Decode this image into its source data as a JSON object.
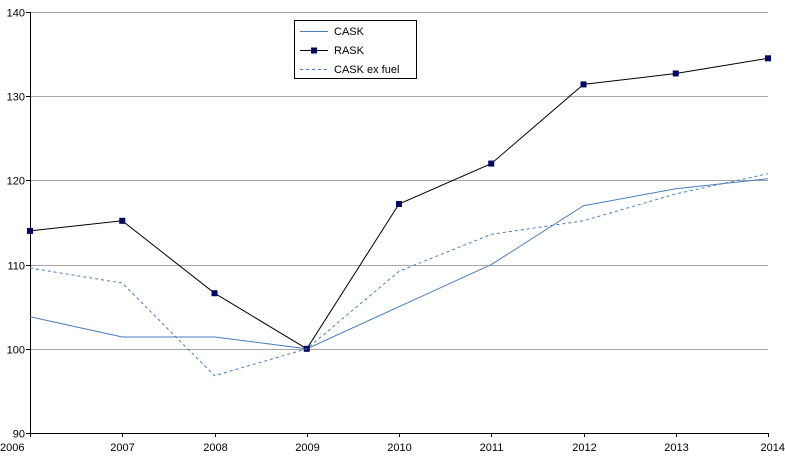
{
  "chart_data": {
    "type": "line",
    "x": [
      "2006",
      "2007",
      "2008",
      "2009",
      "2010",
      "2011",
      "2012",
      "2013",
      "2014"
    ],
    "ylim": [
      90,
      140
    ],
    "yticks": [
      90,
      100,
      110,
      120,
      130,
      140
    ],
    "grid": true,
    "legend": "top-center",
    "series": [
      {
        "name": "CASK",
        "values": [
          103.8,
          101.4,
          101.4,
          100.0,
          105.0,
          110.0,
          117.0,
          119.0,
          120.2
        ],
        "color": "#4a7ebf",
        "style": "solid",
        "marker": "none"
      },
      {
        "name": "RASK",
        "values": [
          114.0,
          115.2,
          106.6,
          100.0,
          117.2,
          122.0,
          131.4,
          132.7,
          134.5
        ],
        "color": "#000066",
        "line_color": "#000000",
        "style": "solid",
        "marker": "square"
      },
      {
        "name": "CASK ex fuel",
        "values": [
          109.6,
          107.8,
          96.8,
          100.0,
          109.2,
          113.6,
          115.2,
          118.4,
          120.8
        ],
        "color": "#4a7ebf",
        "style": "dashed",
        "marker": "none"
      }
    ]
  }
}
